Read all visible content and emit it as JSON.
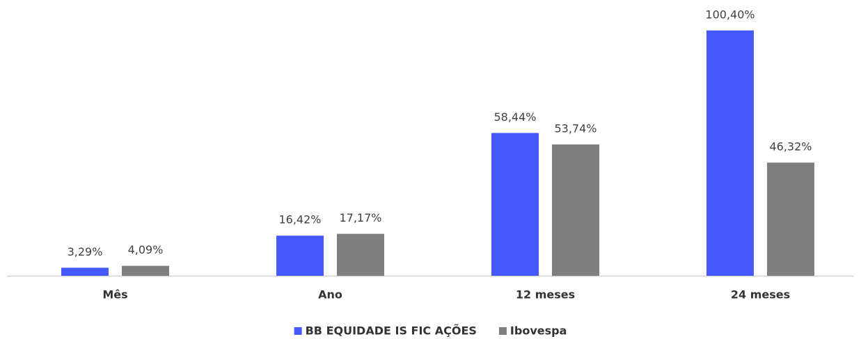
{
  "chart_data": {
    "type": "bar",
    "categories": [
      "Mês",
      "Ano",
      "12 meses",
      "24 meses"
    ],
    "series": [
      {
        "name": "BB EQUIDADE IS FIC AÇÕES",
        "color": "#4559ff",
        "values": [
          3.29,
          16.42,
          58.44,
          100.4
        ],
        "value_labels": [
          "3,29%",
          "16,42%",
          "58,44%",
          "100,40%"
        ]
      },
      {
        "name": "Ibovespa",
        "color": "#7f7f7f",
        "values": [
          4.09,
          17.17,
          53.74,
          46.32
        ],
        "value_labels": [
          "4,09%",
          "17,17%",
          "53,74%",
          "46,32%"
        ]
      }
    ],
    "ylim": [
      0,
      110
    ],
    "legend": "bottom"
  }
}
